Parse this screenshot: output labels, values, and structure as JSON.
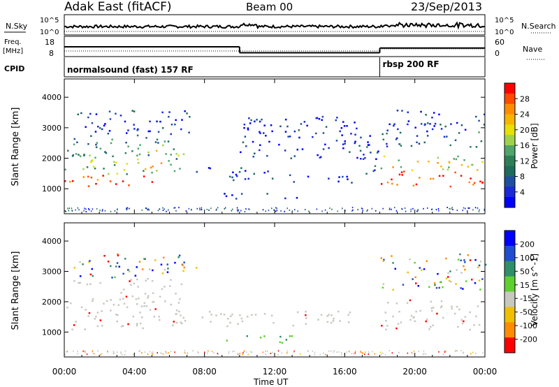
{
  "header": {
    "radar_title": "Adak East (fitACF)",
    "beam": "Beam 00",
    "date": "23/Sep/2013"
  },
  "summary": {
    "nsky_label": "N.Sky",
    "nsearch_label": "N.Search",
    "noise_ticks": [
      "10^5",
      "10^0"
    ],
    "freq_label_1": "Freq.",
    "freq_label_2": "[MHz]",
    "freq_ticks": [
      "18",
      "8"
    ],
    "nave_label": "Nave",
    "nave_ticks": [
      "60",
      "0"
    ],
    "cpid_label": "CPID",
    "cpid_segments": [
      {
        "label": "normalsound (fast) 157 RF",
        "start_hour": 0,
        "end_hour": 18
      },
      {
        "label": "rbsp 200 RF",
        "start_hour": 18,
        "end_hour": 24
      }
    ],
    "freq_steps": [
      {
        "start_hour": 0,
        "end_hour": 10,
        "value": 13.5
      },
      {
        "start_hour": 10,
        "end_hour": 18,
        "value": 10.6
      },
      {
        "start_hour": 18,
        "end_hour": 24,
        "value": 12.9
      }
    ]
  },
  "x_axis": {
    "label": "Time UT",
    "ticks": [
      "00:00",
      "04:00",
      "08:00",
      "12:00",
      "16:00",
      "20:00",
      "00:00"
    ]
  },
  "chart_data": [
    {
      "type": "heatmap",
      "title": "",
      "xlabel": "Time UT",
      "ylabel": "Slant Range [km]",
      "xlim": [
        0,
        24
      ],
      "ylim": [
        180,
        4600
      ],
      "yticks": [
        1000,
        2000,
        3000,
        4000
      ],
      "colorbar": {
        "label": "Power [dB]",
        "ticks": [
          "28",
          "24",
          "20",
          "16",
          "12",
          "8",
          "4"
        ],
        "colors": [
          "#ff0000",
          "#ff4a00",
          "#ff8c00",
          "#f7b500",
          "#e8e000",
          "#9fd24a",
          "#4fa56b",
          "#2e7f57",
          "#1f6b5a",
          "#1e4fa0",
          "#1a2ad8",
          "#0000ff"
        ]
      },
      "regions": [
        {
          "t0": 0.0,
          "t1": 4.2,
          "r_min": 1100,
          "r_max": 1500,
          "level": 0.9
        },
        {
          "t0": 4.2,
          "t1": 5.2,
          "r_min": 1200,
          "r_max": 1800,
          "level": 0.85
        },
        {
          "t0": 5.2,
          "t1": 6.8,
          "r_min": 1600,
          "r_max": 2500,
          "level": 0.6
        },
        {
          "t0": 0.0,
          "t1": 5.0,
          "r_min": 1500,
          "r_max": 2000,
          "level": 0.5
        },
        {
          "t0": 0.0,
          "t1": 6.5,
          "r_min": 2000,
          "r_max": 2800,
          "level": 0.35
        },
        {
          "t0": 0.5,
          "t1": 7.5,
          "r_min": 2800,
          "r_max": 3600,
          "level": 0.15
        },
        {
          "t0": 7.5,
          "t1": 10.5,
          "r_min": 1350,
          "r_max": 1750,
          "level": 0.15
        },
        {
          "t0": 9.5,
          "t1": 13.0,
          "r_min": 1300,
          "r_max": 1600,
          "level": 0.12
        },
        {
          "t0": 13.0,
          "t1": 16.5,
          "r_min": 1200,
          "r_max": 1500,
          "level": 0.1
        },
        {
          "t0": 8.8,
          "t1": 13.5,
          "r_min": 700,
          "r_max": 900,
          "level": 0.12
        },
        {
          "t0": 16.5,
          "t1": 18.0,
          "r_min": 1500,
          "r_max": 2500,
          "level": 0.2
        },
        {
          "t0": 18.0,
          "t1": 24.0,
          "r_min": 1100,
          "r_max": 1600,
          "level": 0.92
        },
        {
          "t0": 18.0,
          "t1": 24.0,
          "r_min": 1600,
          "r_max": 2100,
          "level": 0.6
        },
        {
          "t0": 18.0,
          "t1": 24.0,
          "r_min": 2400,
          "r_max": 2900,
          "level": 0.25
        },
        {
          "t0": 18.0,
          "t1": 24.0,
          "r_min": 2900,
          "r_max": 3600,
          "level": 0.15
        },
        {
          "t0": 10.0,
          "t1": 17.5,
          "r_min": 2000,
          "r_max": 3400,
          "level": 0.1
        }
      ]
    },
    {
      "type": "heatmap",
      "title": "",
      "xlabel": "Time UT",
      "ylabel": "Slant Range [km]",
      "xlim": [
        0,
        24
      ],
      "ylim": [
        180,
        4600
      ],
      "yticks": [
        1000,
        2000,
        3000,
        4000
      ],
      "colorbar": {
        "label": "Velocity [m s^-1]",
        "ticks": [
          "200",
          "100",
          "50",
          "15",
          "-15",
          "-50",
          "-100",
          "-200"
        ],
        "colors": [
          "#0000ff",
          "#1f4fd0",
          "#2f8f6a",
          "#5fd02f",
          "#c8c8c0",
          "#f0c000",
          "#ff8c00",
          "#ff0000"
        ]
      },
      "regions": [
        {
          "t0": 0.0,
          "t1": 7.0,
          "r_min": 1100,
          "r_max": 2800,
          "level": "ground"
        },
        {
          "t0": 0.5,
          "t1": 7.5,
          "r_min": 2800,
          "r_max": 3600,
          "level": "mixed"
        },
        {
          "t0": 7.5,
          "t1": 16.5,
          "r_min": 1200,
          "r_max": 1750,
          "level": "ground"
        },
        {
          "t0": 8.8,
          "t1": 13.5,
          "r_min": 650,
          "r_max": 900,
          "level": "green"
        },
        {
          "t0": 18.0,
          "t1": 24.0,
          "r_min": 1100,
          "r_max": 2100,
          "level": "ground"
        },
        {
          "t0": 18.0,
          "t1": 24.0,
          "r_min": 2400,
          "r_max": 3600,
          "level": "mixed"
        }
      ]
    }
  ]
}
